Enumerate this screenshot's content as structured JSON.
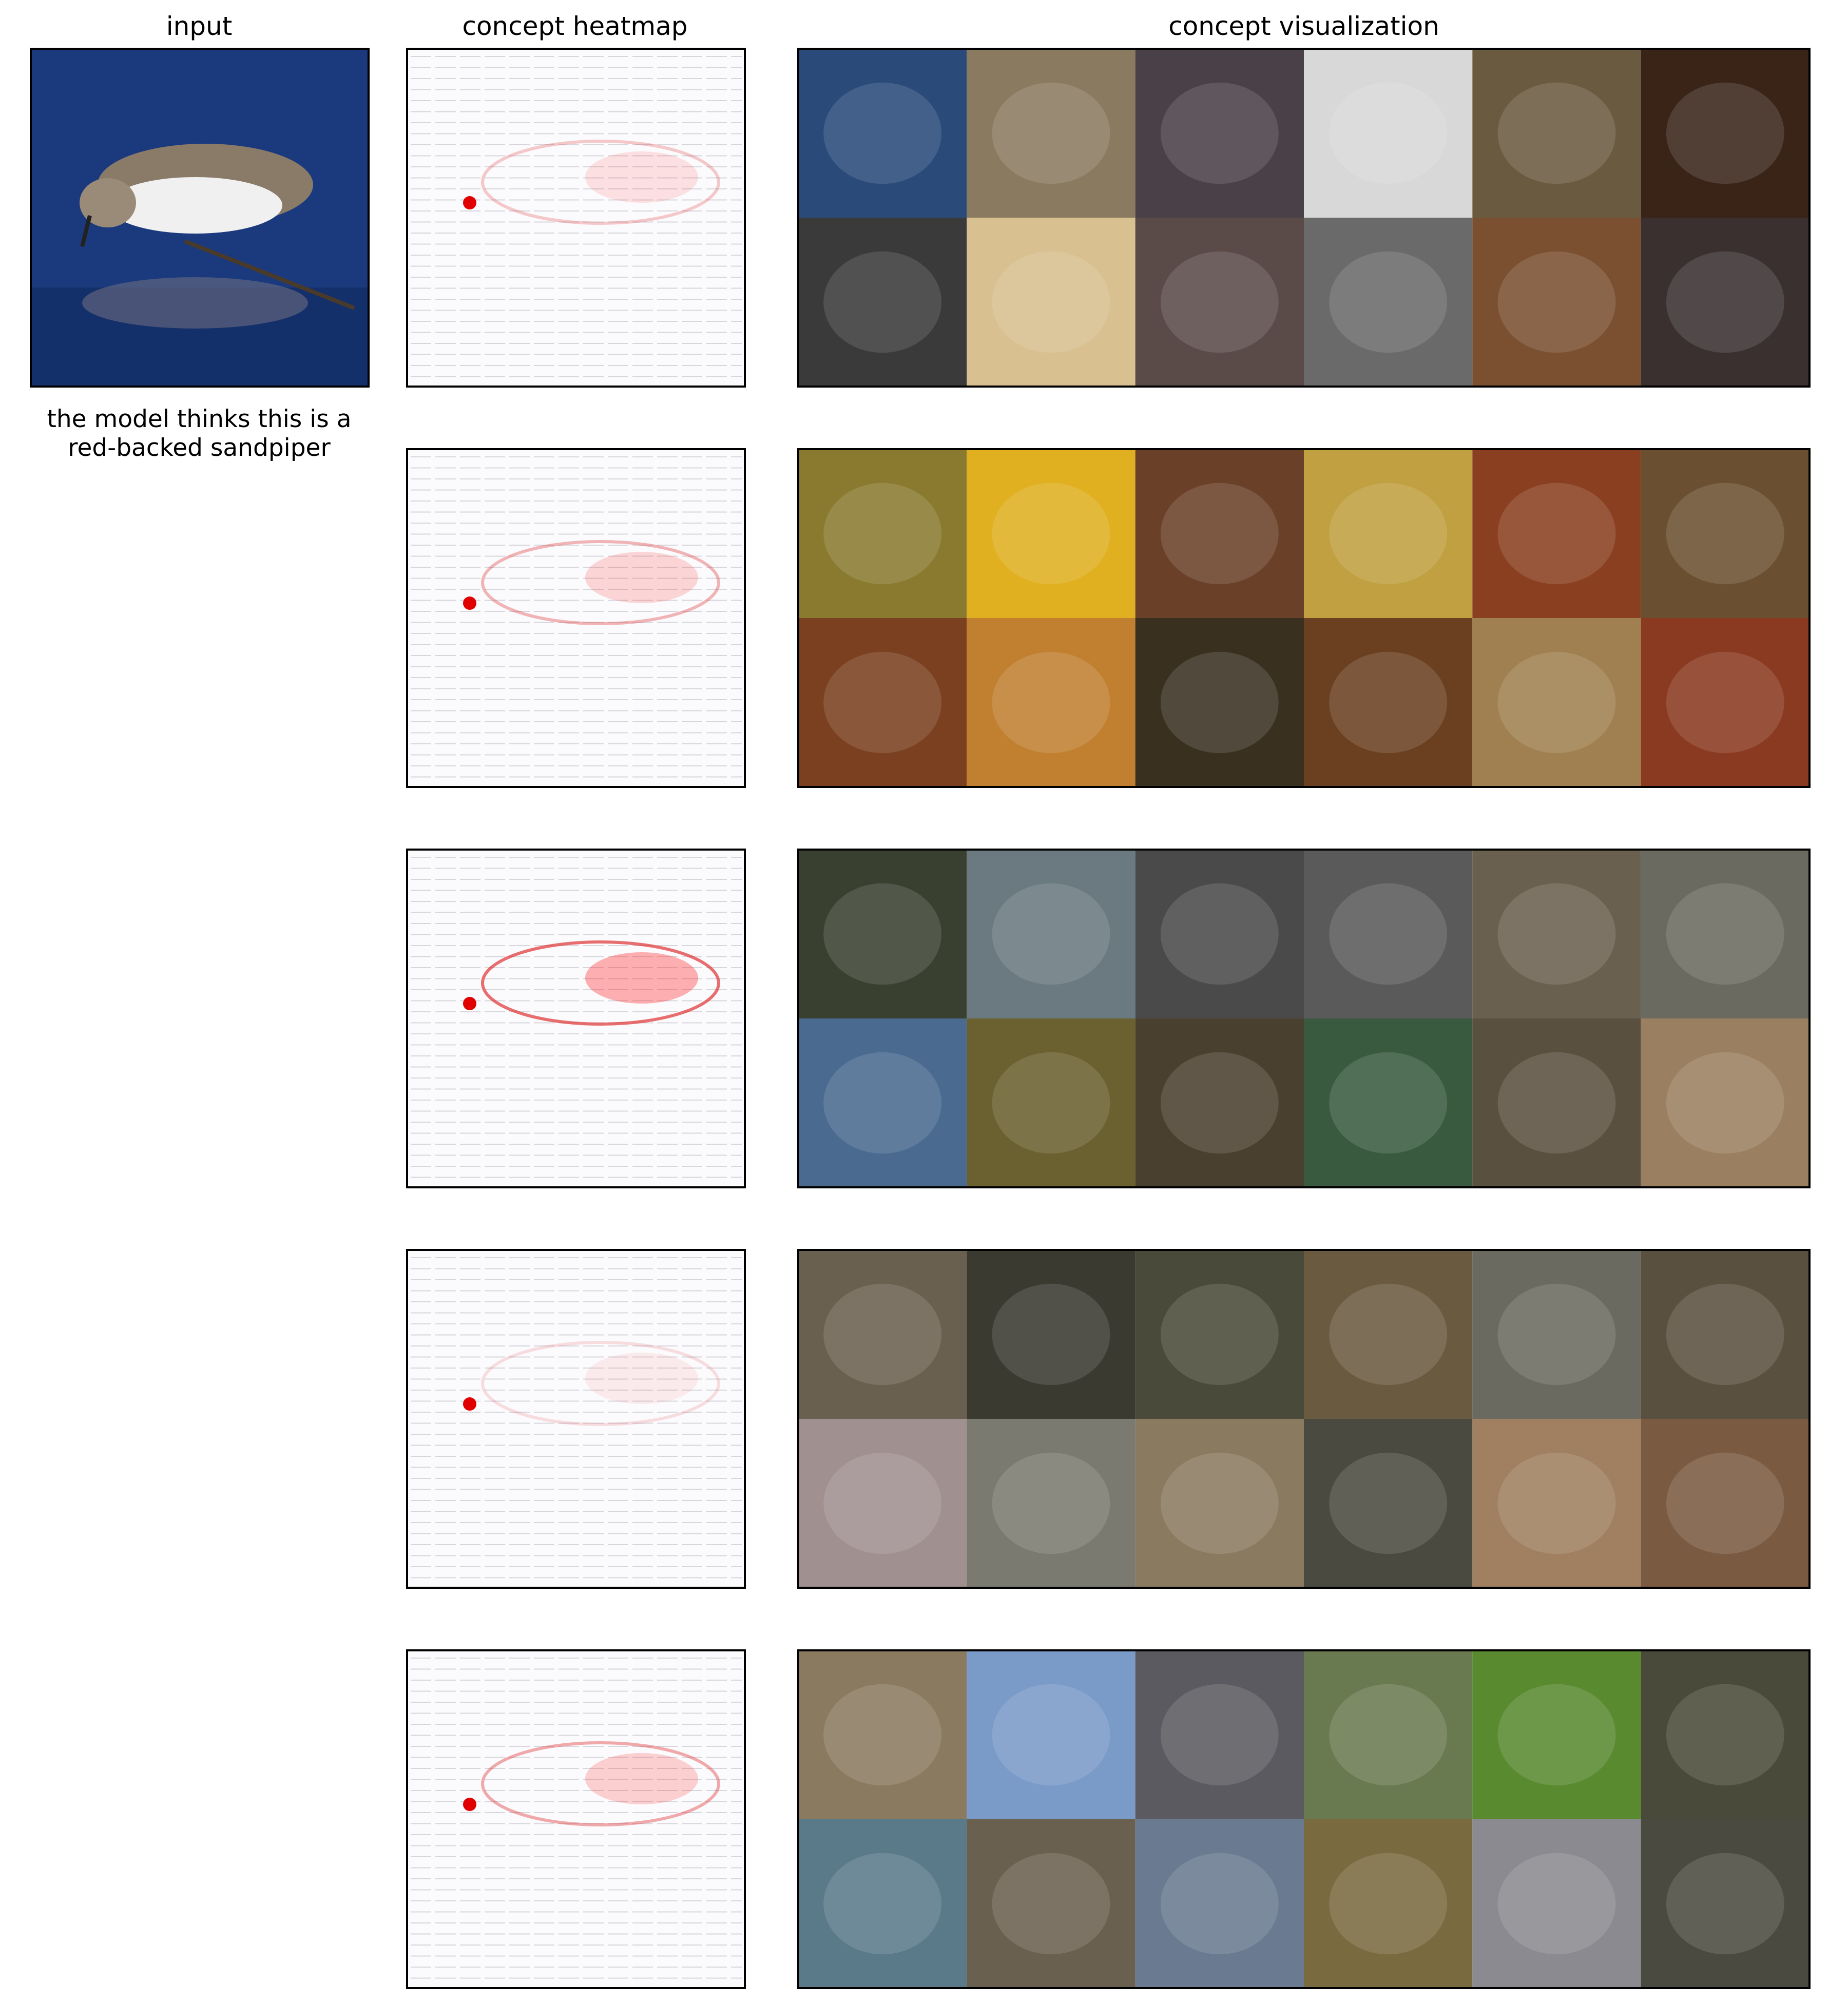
{
  "header": {
    "input": "input",
    "heatmap": "concept heatmap",
    "visualization": "concept visualization"
  },
  "caption": [
    "the model thinks this is a",
    "red-backed sandpiper"
  ]
}
